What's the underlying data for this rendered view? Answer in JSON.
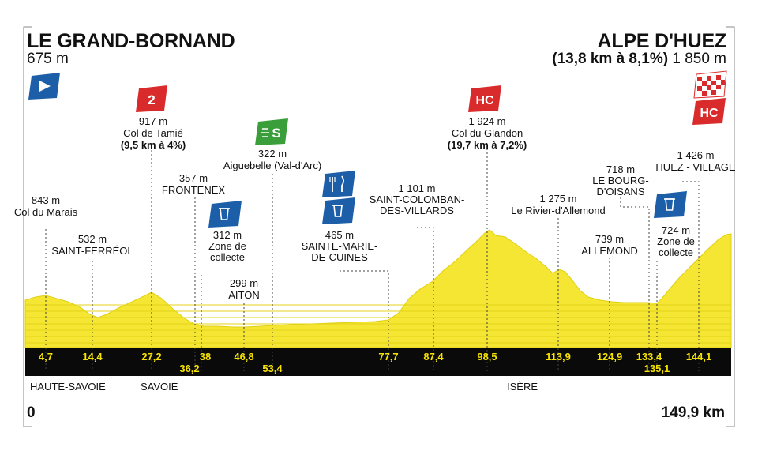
{
  "start": {
    "name": "LE GRAND-BORNAND",
    "alt": "675 m"
  },
  "finish": {
    "name": "ALPE D'HUEZ",
    "climb": "(13,8 km à 8,1%)",
    "alt": "1 850 m"
  },
  "axis": {
    "start": "0",
    "end": "149,9 km"
  },
  "regions": [
    "HAUTE-SAVOIE",
    "SAVOIE",
    "ISÈRE"
  ],
  "colors": {
    "profile": "#f5e633",
    "band": "#0a0a0a",
    "km_text": "#f7e300",
    "blue": "#1c5fa8",
    "red": "#d92b2b",
    "green": "#3a9f3a"
  },
  "markers": {
    "cat2": "2",
    "hc1": "HC",
    "hc2": "HC"
  },
  "km_labels": [
    "4,7",
    "14,4",
    "27,2",
    "36,2",
    "38",
    "46,8",
    "53,4",
    "77,7",
    "87,4",
    "98,5",
    "113,9",
    "124,9",
    "133,4",
    "135,1",
    "144,1"
  ],
  "points": {
    "marais": {
      "alt": "843 m",
      "name": "Col du Marais"
    },
    "ferreol": {
      "alt": "532 m",
      "name": "SAINT-FERRÉOL"
    },
    "tamie": {
      "alt": "917 m",
      "name": "Col de Tamié",
      "climb": "(9,5 km à 4%)"
    },
    "frontenex": {
      "alt": "357 m",
      "name": "FRONTENEX"
    },
    "collecte1": {
      "alt": "312 m",
      "l1": "Zone de",
      "l2": "collecte"
    },
    "aiton": {
      "alt": "299 m",
      "name": "AITON"
    },
    "aiguebelle": {
      "alt": "322 m",
      "name": "Aiguebelle (Val-d'Arc)"
    },
    "cuines": {
      "alt": "465 m",
      "l1": "SAINTE-MARIE-",
      "l2": "DE-CUINES"
    },
    "colomban": {
      "alt": "1 101 m",
      "l1": "SAINT-COLOMBAN-",
      "l2": "DES-VILLARDS"
    },
    "glandon": {
      "alt": "1 924 m",
      "name": "Col du Glandon",
      "climb": "(19,7 km à 7,2%)"
    },
    "rivier": {
      "alt": "1 275 m",
      "name": "Le Rivier-d'Allemond"
    },
    "allemond": {
      "alt": "739 m",
      "name": "ALLEMOND"
    },
    "bourg": {
      "alt": "718 m",
      "l1": "LE BOURG-",
      "l2": "D'OISANS"
    },
    "collecte2": {
      "alt": "724 m",
      "l1": "Zone de",
      "l2": "collecte"
    },
    "huez": {
      "alt": "1 426 m",
      "name": "HUEZ - VILLAGE"
    }
  }
}
